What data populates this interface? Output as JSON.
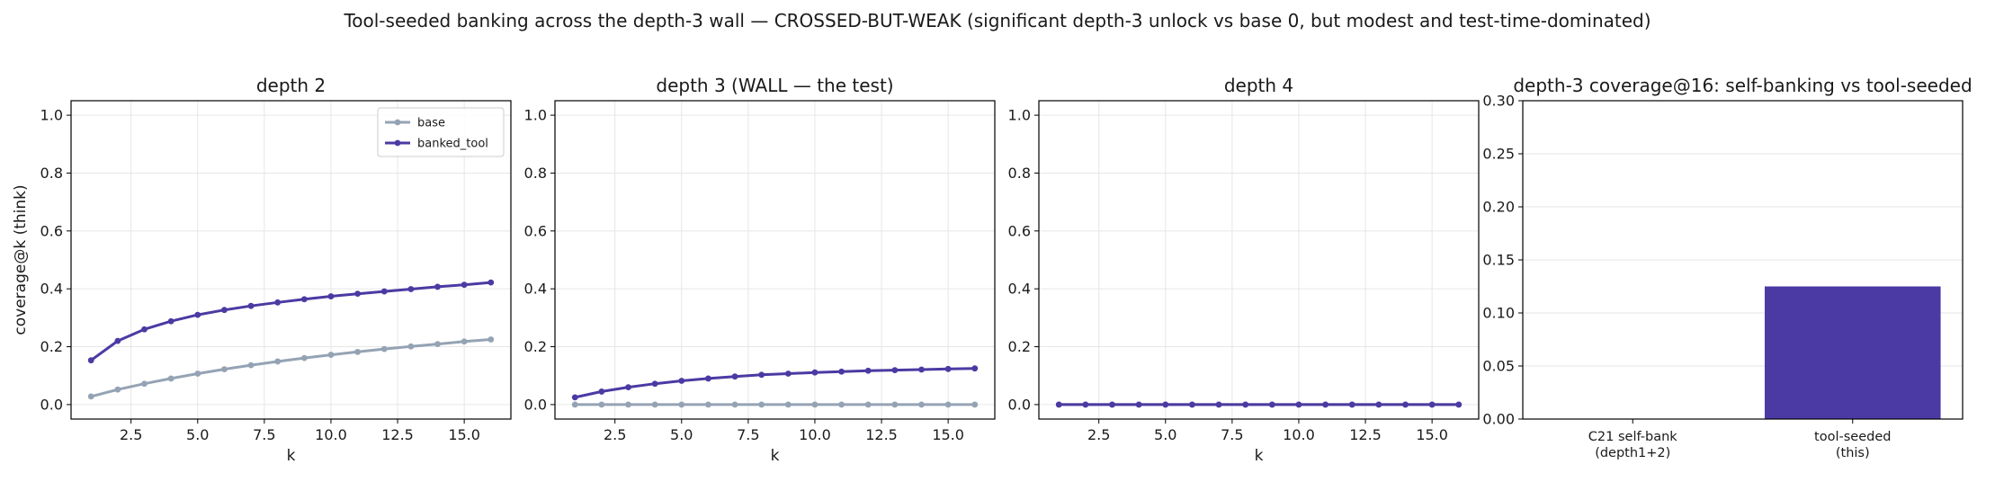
{
  "suptitle": "Tool-seeded banking across the depth-3 wall — CROSSED-BUT-WEAK (significant depth-3 unlock vs base 0, but modest and test-time-dominated)",
  "colors": {
    "base": "#94a3b4",
    "banked_tool": "#4b3aa3",
    "bar": "#4b3aa3",
    "grid": "#e6e6e6",
    "axis": "#000000"
  },
  "chart_data": [
    {
      "type": "line",
      "title": "depth 2",
      "xlabel": "k",
      "ylabel": "coverage@k (think)",
      "xlim": [
        0.25,
        16.75
      ],
      "ylim": [
        -0.05,
        1.05
      ],
      "xticks": [
        2.5,
        5.0,
        7.5,
        10.0,
        12.5,
        15.0
      ],
      "xtick_labels": [
        "2.5",
        "5.0",
        "7.5",
        "10.0",
        "12.5",
        "15.0"
      ],
      "yticks": [
        0.0,
        0.2,
        0.4,
        0.6,
        0.8,
        1.0
      ],
      "ytick_labels": [
        "0.0",
        "0.2",
        "0.4",
        "0.6",
        "0.8",
        "1.0"
      ],
      "grid": true,
      "legend": "top-right",
      "x": [
        1,
        2,
        3,
        4,
        5,
        6,
        7,
        8,
        9,
        10,
        11,
        12,
        13,
        14,
        15,
        16
      ],
      "series": [
        {
          "name": "base",
          "color": "#94a3b4",
          "values": [
            0.028,
            0.052,
            0.072,
            0.09,
            0.107,
            0.122,
            0.136,
            0.149,
            0.161,
            0.172,
            0.182,
            0.192,
            0.201,
            0.209,
            0.218,
            0.225
          ]
        },
        {
          "name": "banked_tool",
          "color": "#4b3aa3",
          "values": [
            0.153,
            0.22,
            0.26,
            0.288,
            0.31,
            0.327,
            0.341,
            0.353,
            0.364,
            0.374,
            0.383,
            0.391,
            0.399,
            0.407,
            0.414,
            0.422
          ]
        }
      ]
    },
    {
      "type": "line",
      "title": "depth 3 (WALL — the test)",
      "xlabel": "k",
      "ylabel": "",
      "xlim": [
        0.25,
        16.75
      ],
      "ylim": [
        -0.05,
        1.05
      ],
      "xticks": [
        2.5,
        5.0,
        7.5,
        10.0,
        12.5,
        15.0
      ],
      "xtick_labels": [
        "2.5",
        "5.0",
        "7.5",
        "10.0",
        "12.5",
        "15.0"
      ],
      "yticks": [
        0.0,
        0.2,
        0.4,
        0.6,
        0.8,
        1.0
      ],
      "ytick_labels": [
        "0.0",
        "0.2",
        "0.4",
        "0.6",
        "0.8",
        "1.0"
      ],
      "grid": true,
      "x": [
        1,
        2,
        3,
        4,
        5,
        6,
        7,
        8,
        9,
        10,
        11,
        12,
        13,
        14,
        15,
        16
      ],
      "series": [
        {
          "color": "#94a3b4",
          "values": [
            0,
            0,
            0,
            0,
            0,
            0,
            0,
            0,
            0,
            0,
            0,
            0,
            0,
            0,
            0,
            0
          ]
        },
        {
          "color": "#4b3aa3",
          "values": [
            0.025,
            0.045,
            0.06,
            0.072,
            0.082,
            0.09,
            0.097,
            0.103,
            0.107,
            0.111,
            0.114,
            0.117,
            0.119,
            0.121,
            0.123,
            0.125
          ]
        }
      ]
    },
    {
      "type": "line",
      "title": "depth 4",
      "xlabel": "k",
      "ylabel": "",
      "xlim": [
        0.25,
        16.75
      ],
      "ylim": [
        -0.05,
        1.05
      ],
      "xticks": [
        2.5,
        5.0,
        7.5,
        10.0,
        12.5,
        15.0
      ],
      "xtick_labels": [
        "2.5",
        "5.0",
        "7.5",
        "10.0",
        "12.5",
        "15.0"
      ],
      "yticks": [
        0.0,
        0.2,
        0.4,
        0.6,
        0.8,
        1.0
      ],
      "ytick_labels": [
        "0.0",
        "0.2",
        "0.4",
        "0.6",
        "0.8",
        "1.0"
      ],
      "grid": true,
      "x": [
        1,
        2,
        3,
        4,
        5,
        6,
        7,
        8,
        9,
        10,
        11,
        12,
        13,
        14,
        15,
        16
      ],
      "series": [
        {
          "color": "#94a3b4",
          "values": [
            0,
            0,
            0,
            0,
            0,
            0,
            0,
            0,
            0,
            0,
            0,
            0,
            0,
            0,
            0,
            0
          ]
        },
        {
          "color": "#4b3aa3",
          "values": [
            0,
            0,
            0,
            0,
            0,
            0,
            0,
            0,
            0,
            0,
            0,
            0,
            0,
            0,
            0,
            0
          ]
        }
      ]
    },
    {
      "type": "bar",
      "title": "depth-3 coverage@16: self-banking vs tool-seeded",
      "xlabel": "",
      "ylabel": "",
      "categories": [
        [
          "C21 self-bank",
          "(depth1+2)"
        ],
        [
          "tool-seeded",
          "(this)"
        ]
      ],
      "values": [
        0.0,
        0.125
      ],
      "ylim": [
        0,
        0.3
      ],
      "yticks": [
        0.0,
        0.05,
        0.1,
        0.15,
        0.2,
        0.25,
        0.3
      ],
      "ytick_labels": [
        "0.00",
        "0.05",
        "0.10",
        "0.15",
        "0.20",
        "0.25",
        "0.30"
      ],
      "grid": true
    }
  ]
}
